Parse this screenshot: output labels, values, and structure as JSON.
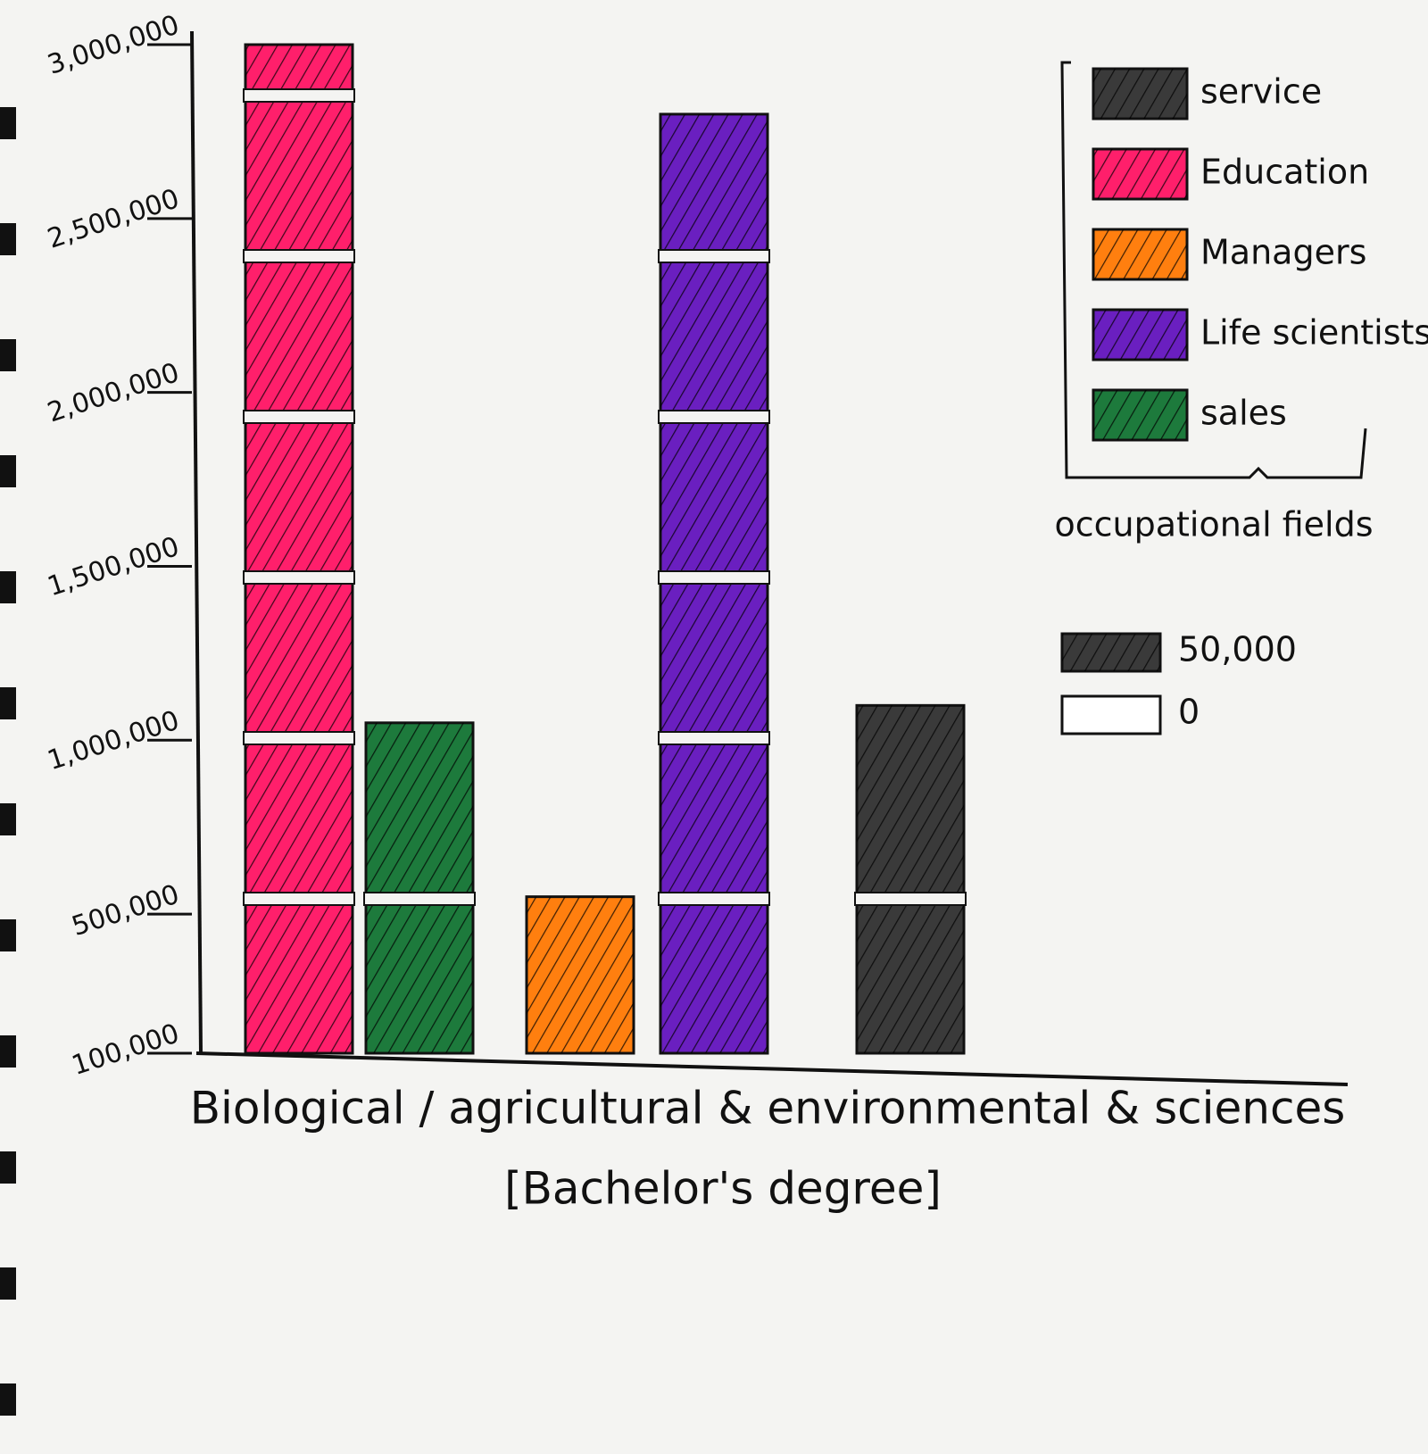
{
  "chart_data": {
    "type": "bar",
    "x_label": "Biological / agricultural & environmental & sciences",
    "x_sublabel": "[Bachelor's degree]",
    "ylim": [
      100000,
      3000000
    ],
    "yticks": [
      {
        "value": 100000,
        "label": "100,000"
      },
      {
        "value": 500000,
        "label": "500,000"
      },
      {
        "value": 1000000,
        "label": "1,000,000"
      },
      {
        "value": 1500000,
        "label": "1,500,000"
      },
      {
        "value": 2000000,
        "label": "2,000,000"
      },
      {
        "value": 2500000,
        "label": "2,500,000"
      },
      {
        "value": 3000000,
        "label": "3,000,000"
      }
    ],
    "legend_title": "occupational fields",
    "series": [
      {
        "name": "service",
        "color": "#3a3a3a",
        "values": [
          1100000
        ]
      },
      {
        "name": "Education",
        "color": "#ff1f6b",
        "values": [
          3000000
        ]
      },
      {
        "name": "Managers",
        "color": "#ff7f0f",
        "values": [
          550000
        ]
      },
      {
        "name": "Life scientists",
        "color": "#6a1fc0",
        "values": [
          2800000
        ]
      },
      {
        "name": "sales",
        "color": "#1d7a3c",
        "values": [
          1050000
        ]
      }
    ],
    "unit_key": [
      {
        "value": 50000,
        "label": "50,000",
        "color": "#3a3a3a"
      },
      {
        "value": 0,
        "label": "0",
        "color": "#ffffff"
      }
    ]
  }
}
